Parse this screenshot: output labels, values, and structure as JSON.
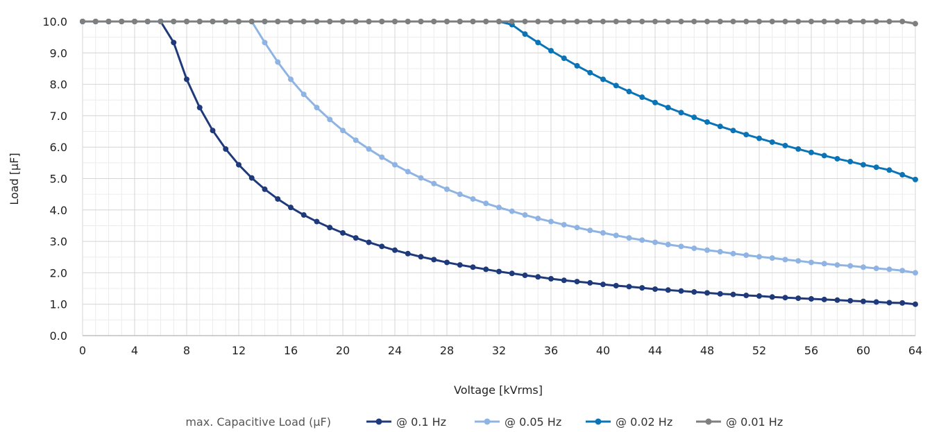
{
  "chart_data": {
    "type": "line",
    "title": "",
    "xlabel": "Voltage [kVrms]",
    "ylabel": "Load [µF]",
    "xlim": [
      0,
      64
    ],
    "ylim": [
      0,
      10
    ],
    "x_ticks": [
      "0",
      "4",
      "8",
      "12",
      "16",
      "20",
      "24",
      "28",
      "32",
      "36",
      "40",
      "44",
      "48",
      "52",
      "56",
      "60",
      "64"
    ],
    "y_ticks": [
      "0.0",
      "1.0",
      "2.0",
      "3.0",
      "4.0",
      "5.0",
      "6.0",
      "7.0",
      "8.0",
      "9.0",
      "10.0"
    ],
    "grid": true,
    "legend_placement": "bottom",
    "legend_title": "max. Capacitive Load (µF)",
    "series": [
      {
        "name": "@ 0.1 Hz",
        "color": "#1f3a7a",
        "points": [
          [
            0,
            10
          ],
          [
            1,
            10
          ],
          [
            2,
            10
          ],
          [
            3,
            10
          ],
          [
            4,
            10
          ],
          [
            5,
            10
          ],
          [
            6,
            10
          ],
          [
            7,
            9.33
          ],
          [
            8,
            8.16
          ],
          [
            9,
            7.26
          ],
          [
            10,
            6.53
          ],
          [
            11,
            5.94
          ],
          [
            12,
            5.44
          ],
          [
            13,
            5.02
          ],
          [
            14,
            4.66
          ],
          [
            15,
            4.35
          ],
          [
            16,
            4.08
          ],
          [
            17,
            3.84
          ],
          [
            18,
            3.63
          ],
          [
            19,
            3.44
          ],
          [
            20,
            3.27
          ],
          [
            21,
            3.11
          ],
          [
            22,
            2.97
          ],
          [
            23,
            2.84
          ],
          [
            24,
            2.72
          ],
          [
            25,
            2.61
          ],
          [
            26,
            2.51
          ],
          [
            27,
            2.42
          ],
          [
            28,
            2.33
          ],
          [
            29,
            2.25
          ],
          [
            30,
            2.18
          ],
          [
            31,
            2.11
          ],
          [
            32,
            2.04
          ],
          [
            33,
            1.98
          ],
          [
            34,
            1.92
          ],
          [
            35,
            1.87
          ],
          [
            36,
            1.81
          ],
          [
            37,
            1.76
          ],
          [
            38,
            1.72
          ],
          [
            39,
            1.68
          ],
          [
            40,
            1.63
          ],
          [
            41,
            1.59
          ],
          [
            42,
            1.56
          ],
          [
            43,
            1.52
          ],
          [
            44,
            1.48
          ],
          [
            45,
            1.45
          ],
          [
            46,
            1.42
          ],
          [
            47,
            1.39
          ],
          [
            48,
            1.36
          ],
          [
            49,
            1.33
          ],
          [
            50,
            1.31
          ],
          [
            51,
            1.28
          ],
          [
            52,
            1.26
          ],
          [
            53,
            1.23
          ],
          [
            54,
            1.21
          ],
          [
            55,
            1.19
          ],
          [
            56,
            1.17
          ],
          [
            57,
            1.15
          ],
          [
            58,
            1.13
          ],
          [
            59,
            1.11
          ],
          [
            60,
            1.09
          ],
          [
            61,
            1.07
          ],
          [
            62,
            1.05
          ],
          [
            63,
            1.04
          ],
          [
            64,
            1.0
          ]
        ]
      },
      {
        "name": "@ 0.05 Hz",
        "color": "#8fb4e3",
        "points": [
          [
            0,
            10
          ],
          [
            1,
            10
          ],
          [
            2,
            10
          ],
          [
            3,
            10
          ],
          [
            4,
            10
          ],
          [
            5,
            10
          ],
          [
            6,
            10
          ],
          [
            7,
            10
          ],
          [
            8,
            10
          ],
          [
            9,
            10
          ],
          [
            10,
            10
          ],
          [
            11,
            10
          ],
          [
            12,
            10
          ],
          [
            13,
            10
          ],
          [
            14,
            9.33
          ],
          [
            15,
            8.71
          ],
          [
            16,
            8.16
          ],
          [
            17,
            7.68
          ],
          [
            18,
            7.26
          ],
          [
            19,
            6.88
          ],
          [
            20,
            6.53
          ],
          [
            21,
            6.22
          ],
          [
            22,
            5.94
          ],
          [
            23,
            5.68
          ],
          [
            24,
            5.44
          ],
          [
            25,
            5.22
          ],
          [
            26,
            5.02
          ],
          [
            27,
            4.84
          ],
          [
            28,
            4.66
          ],
          [
            29,
            4.5
          ],
          [
            30,
            4.35
          ],
          [
            31,
            4.21
          ],
          [
            32,
            4.08
          ],
          [
            33,
            3.96
          ],
          [
            34,
            3.84
          ],
          [
            35,
            3.73
          ],
          [
            36,
            3.63
          ],
          [
            37,
            3.53
          ],
          [
            38,
            3.44
          ],
          [
            39,
            3.35
          ],
          [
            40,
            3.27
          ],
          [
            41,
            3.19
          ],
          [
            42,
            3.11
          ],
          [
            43,
            3.04
          ],
          [
            44,
            2.97
          ],
          [
            45,
            2.9
          ],
          [
            46,
            2.84
          ],
          [
            47,
            2.78
          ],
          [
            48,
            2.72
          ],
          [
            49,
            2.67
          ],
          [
            50,
            2.61
          ],
          [
            51,
            2.56
          ],
          [
            52,
            2.51
          ],
          [
            53,
            2.47
          ],
          [
            54,
            2.42
          ],
          [
            55,
            2.38
          ],
          [
            56,
            2.33
          ],
          [
            57,
            2.29
          ],
          [
            58,
            2.25
          ],
          [
            59,
            2.22
          ],
          [
            60,
            2.18
          ],
          [
            61,
            2.14
          ],
          [
            62,
            2.11
          ],
          [
            63,
            2.07
          ],
          [
            64,
            2.0
          ]
        ]
      },
      {
        "name": "@ 0.02 Hz",
        "color": "#0a74b6",
        "points": [
          [
            0,
            10
          ],
          [
            1,
            10
          ],
          [
            2,
            10
          ],
          [
            3,
            10
          ],
          [
            4,
            10
          ],
          [
            5,
            10
          ],
          [
            6,
            10
          ],
          [
            7,
            10
          ],
          [
            8,
            10
          ],
          [
            9,
            10
          ],
          [
            10,
            10
          ],
          [
            11,
            10
          ],
          [
            12,
            10
          ],
          [
            13,
            10
          ],
          [
            14,
            10
          ],
          [
            15,
            10
          ],
          [
            16,
            10
          ],
          [
            17,
            10
          ],
          [
            18,
            10
          ],
          [
            19,
            10
          ],
          [
            20,
            10
          ],
          [
            21,
            10
          ],
          [
            22,
            10
          ],
          [
            23,
            10
          ],
          [
            24,
            10
          ],
          [
            25,
            10
          ],
          [
            26,
            10
          ],
          [
            27,
            10
          ],
          [
            28,
            10
          ],
          [
            29,
            10
          ],
          [
            30,
            10
          ],
          [
            31,
            10
          ],
          [
            32,
            10
          ],
          [
            33,
            9.9
          ],
          [
            34,
            9.6
          ],
          [
            35,
            9.33
          ],
          [
            36,
            9.07
          ],
          [
            37,
            8.83
          ],
          [
            38,
            8.59
          ],
          [
            39,
            8.37
          ],
          [
            40,
            8.16
          ],
          [
            41,
            7.96
          ],
          [
            42,
            7.77
          ],
          [
            43,
            7.59
          ],
          [
            44,
            7.42
          ],
          [
            45,
            7.26
          ],
          [
            46,
            7.1
          ],
          [
            47,
            6.95
          ],
          [
            48,
            6.8
          ],
          [
            49,
            6.66
          ],
          [
            50,
            6.53
          ],
          [
            51,
            6.4
          ],
          [
            52,
            6.28
          ],
          [
            53,
            6.16
          ],
          [
            54,
            6.05
          ],
          [
            55,
            5.94
          ],
          [
            56,
            5.83
          ],
          [
            57,
            5.73
          ],
          [
            58,
            5.63
          ],
          [
            59,
            5.54
          ],
          [
            60,
            5.44
          ],
          [
            61,
            5.36
          ],
          [
            62,
            5.27
          ],
          [
            63,
            5.12
          ],
          [
            64,
            4.97
          ]
        ]
      },
      {
        "name": "@ 0.01 Hz",
        "color": "#7f7f7f",
        "points": [
          [
            0,
            10
          ],
          [
            1,
            10
          ],
          [
            2,
            10
          ],
          [
            3,
            10
          ],
          [
            4,
            10
          ],
          [
            5,
            10
          ],
          [
            6,
            10
          ],
          [
            7,
            10
          ],
          [
            8,
            10
          ],
          [
            9,
            10
          ],
          [
            10,
            10
          ],
          [
            11,
            10
          ],
          [
            12,
            10
          ],
          [
            13,
            10
          ],
          [
            14,
            10
          ],
          [
            15,
            10
          ],
          [
            16,
            10
          ],
          [
            17,
            10
          ],
          [
            18,
            10
          ],
          [
            19,
            10
          ],
          [
            20,
            10
          ],
          [
            21,
            10
          ],
          [
            22,
            10
          ],
          [
            23,
            10
          ],
          [
            24,
            10
          ],
          [
            25,
            10
          ],
          [
            26,
            10
          ],
          [
            27,
            10
          ],
          [
            28,
            10
          ],
          [
            29,
            10
          ],
          [
            30,
            10
          ],
          [
            31,
            10
          ],
          [
            32,
            10
          ],
          [
            33,
            10
          ],
          [
            34,
            10
          ],
          [
            35,
            10
          ],
          [
            36,
            10
          ],
          [
            37,
            10
          ],
          [
            38,
            10
          ],
          [
            39,
            10
          ],
          [
            40,
            10
          ],
          [
            41,
            10
          ],
          [
            42,
            10
          ],
          [
            43,
            10
          ],
          [
            44,
            10
          ],
          [
            45,
            10
          ],
          [
            46,
            10
          ],
          [
            47,
            10
          ],
          [
            48,
            10
          ],
          [
            49,
            10
          ],
          [
            50,
            10
          ],
          [
            51,
            10
          ],
          [
            52,
            10
          ],
          [
            53,
            10
          ],
          [
            54,
            10
          ],
          [
            55,
            10
          ],
          [
            56,
            10
          ],
          [
            57,
            10
          ],
          [
            58,
            10
          ],
          [
            59,
            10
          ],
          [
            60,
            10
          ],
          [
            61,
            10
          ],
          [
            62,
            10
          ],
          [
            63,
            10
          ],
          [
            64,
            9.93
          ]
        ]
      }
    ]
  }
}
